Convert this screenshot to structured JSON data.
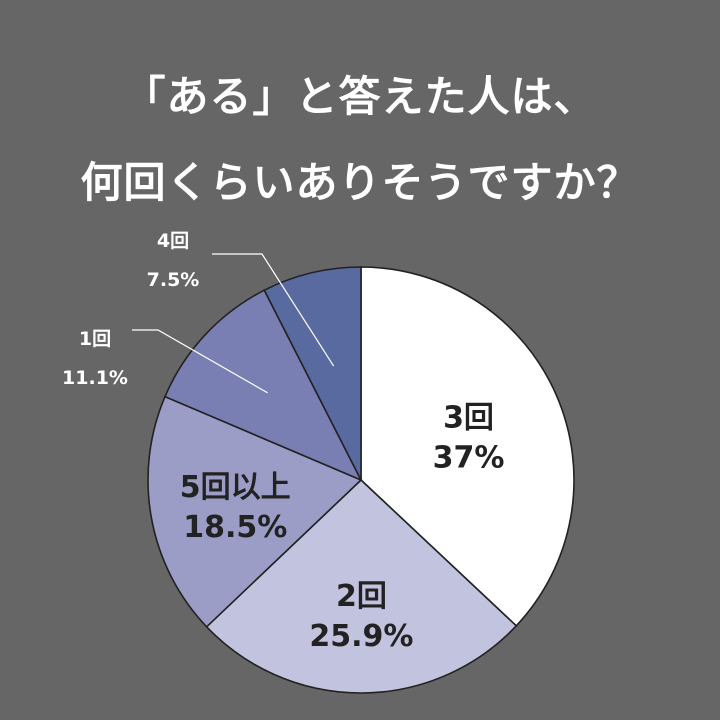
{
  "title": {
    "line1": "「ある」と答えた人は、",
    "line2": "何回くらいありそうですか？"
  },
  "chart_data": {
    "type": "pie",
    "start_angle_deg": 0,
    "direction": "clockwise",
    "slices": [
      {
        "name": "3回",
        "value": 37,
        "value_label": "37%",
        "color": "#ffffff",
        "label_placement": "inside"
      },
      {
        "name": "2回",
        "value": 25.9,
        "value_label": "25.9%",
        "color": "#c2c3de",
        "label_placement": "inside"
      },
      {
        "name": "5回以上",
        "value": 18.5,
        "value_label": "18.5%",
        "color": "#9b9dc6",
        "label_placement": "inside"
      },
      {
        "name": "1回",
        "value": 11.1,
        "value_label": "11.1%",
        "color": "#7a7fb3",
        "label_placement": "outside"
      },
      {
        "name": "4回",
        "value": 7.5,
        "value_label": "7.5%",
        "color": "#596aa1",
        "label_placement": "outside"
      }
    ]
  }
}
